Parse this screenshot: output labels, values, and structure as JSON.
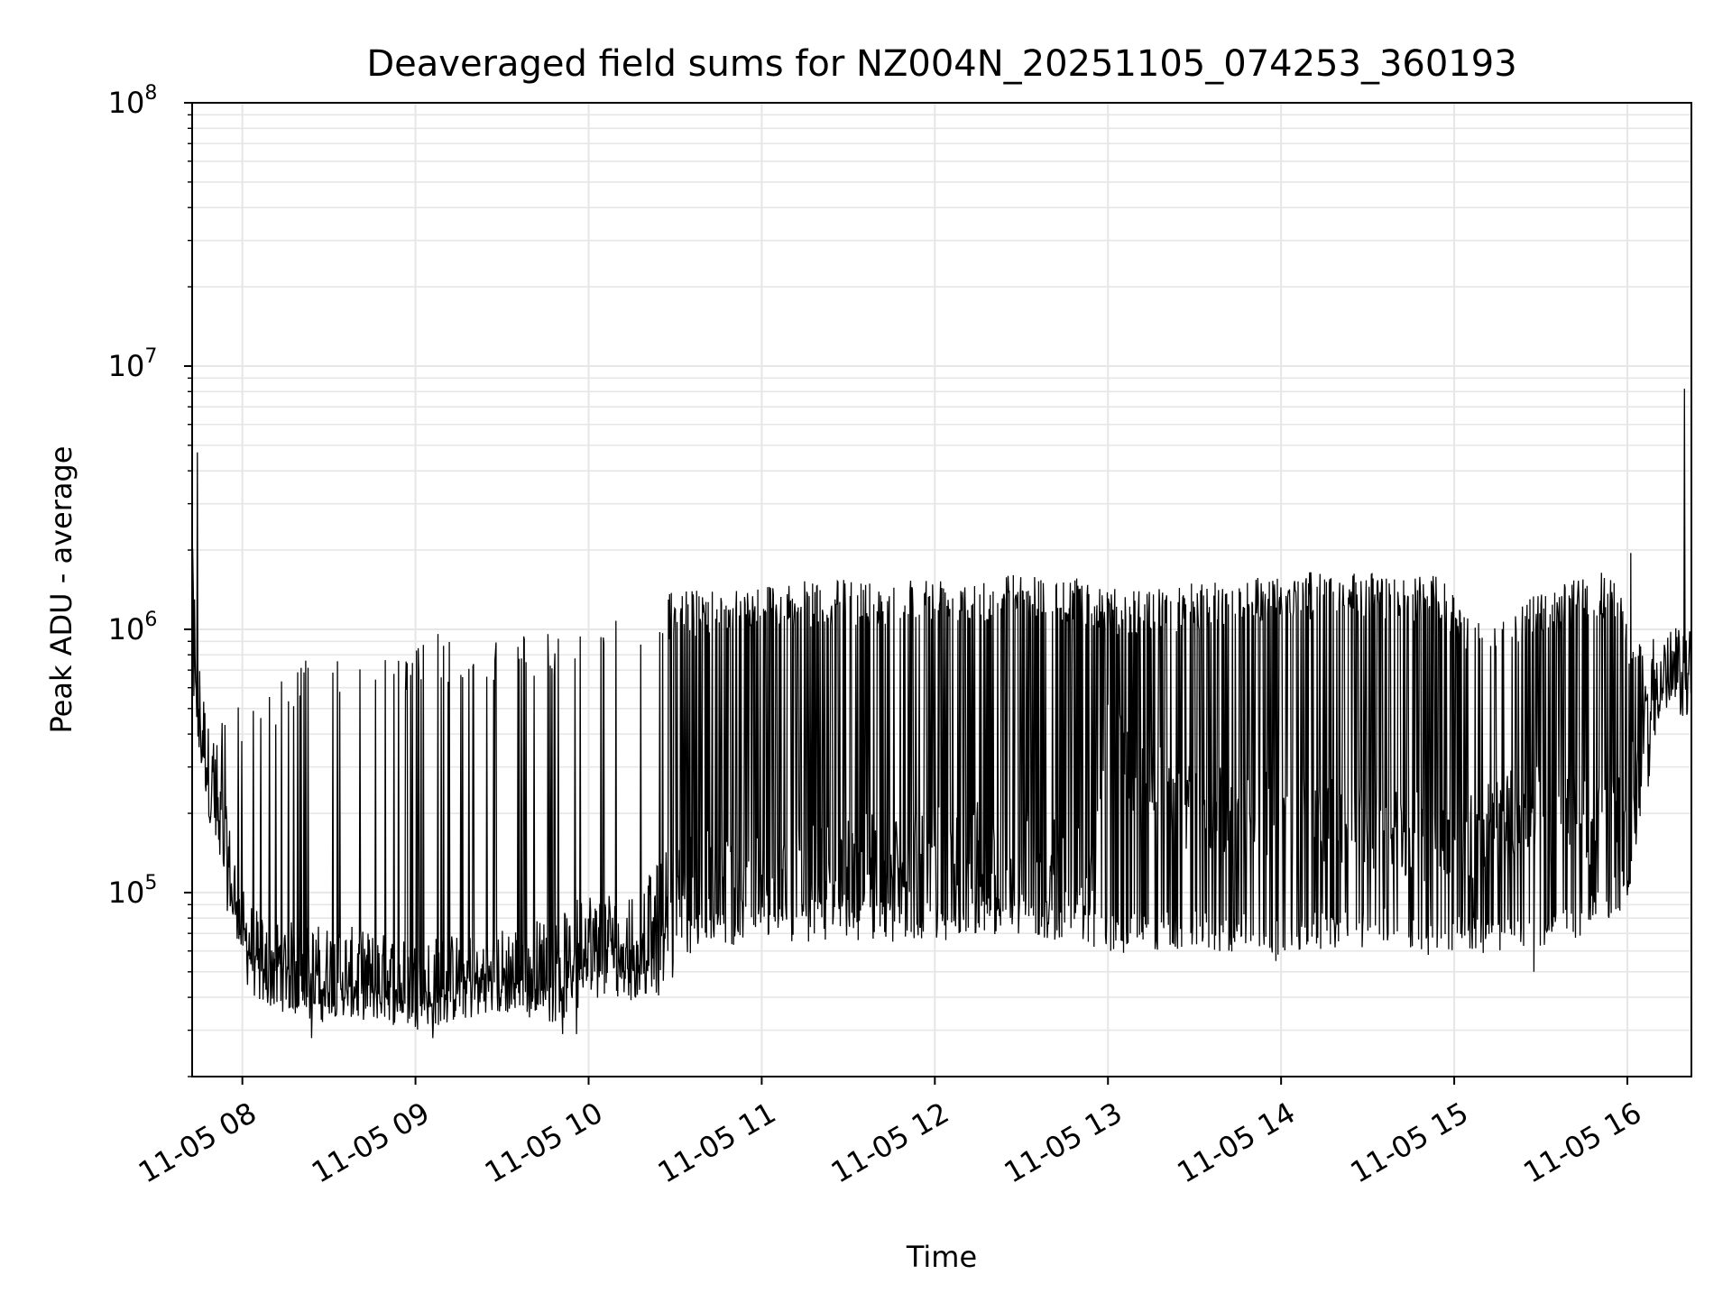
{
  "chart_data": {
    "type": "line",
    "title": "Deaveraged field sums for NZ004N_20251105_074253_360193",
    "xlabel": "Time",
    "ylabel": "Peak ADU - average",
    "yscale": "log",
    "ylim": [
      20000,
      100000000
    ],
    "xlim_hours": [
      7.71,
      16.37
    ],
    "x_ticks": [
      {
        "hour": 8,
        "label": "11-05 08"
      },
      {
        "hour": 9,
        "label": "11-05 09"
      },
      {
        "hour": 10,
        "label": "11-05 10"
      },
      {
        "hour": 11,
        "label": "11-05 11"
      },
      {
        "hour": 12,
        "label": "11-05 12"
      },
      {
        "hour": 13,
        "label": "11-05 13"
      },
      {
        "hour": 14,
        "label": "11-05 14"
      },
      {
        "hour": 15,
        "label": "11-05 15"
      },
      {
        "hour": 16,
        "label": "11-05 16"
      }
    ],
    "y_ticks": [
      {
        "value": 100000,
        "base": "10",
        "exp": "5"
      },
      {
        "value": 1000000,
        "base": "10",
        "exp": "6"
      },
      {
        "value": 10000000,
        "base": "10",
        "exp": "7"
      },
      {
        "value": 100000000,
        "base": "10",
        "exp": "8"
      }
    ],
    "grid": true,
    "line_color": "#000000",
    "grid_color": "#e6e6e6",
    "series": [
      {
        "name": "field sums",
        "baseline_points": [
          [
            7.71,
            1500000
          ],
          [
            7.74,
            600000
          ],
          [
            7.8,
            300000
          ],
          [
            7.9,
            150000
          ],
          [
            8.0,
            70000
          ],
          [
            8.1,
            55000
          ],
          [
            8.3,
            52000
          ],
          [
            8.6,
            50000
          ],
          [
            9.0,
            45000
          ],
          [
            9.5,
            50000
          ],
          [
            9.8,
            55000
          ],
          [
            10.0,
            70000
          ],
          [
            10.3,
            70000
          ],
          [
            10.5,
            110000
          ],
          [
            10.7,
            120000
          ],
          [
            11.0,
            110000
          ],
          [
            11.5,
            130000
          ],
          [
            12.0,
            150000
          ],
          [
            12.5,
            160000
          ],
          [
            12.9,
            110000
          ],
          [
            13.0,
            500000
          ],
          [
            13.1,
            300000
          ],
          [
            13.5,
            200000
          ],
          [
            14.0,
            200000
          ],
          [
            14.5,
            180000
          ],
          [
            15.0,
            150000
          ],
          [
            15.2,
            180000
          ],
          [
            15.5,
            220000
          ],
          [
            15.8,
            180000
          ],
          [
            16.0,
            250000
          ],
          [
            16.08,
            350000
          ],
          [
            16.15,
            650000
          ],
          [
            16.37,
            700000
          ]
        ],
        "peak_envelope": [
          [
            7.71,
            4000000
          ],
          [
            7.8,
            450000
          ],
          [
            8.1,
            600000
          ],
          [
            8.4,
            800000
          ],
          [
            8.8,
            800000
          ],
          [
            9.1,
            900000
          ],
          [
            9.5,
            950000
          ],
          [
            9.9,
            1000000
          ],
          [
            10.2,
            1100000
          ],
          [
            10.5,
            1400000
          ],
          [
            11.0,
            1500000
          ],
          [
            11.5,
            1550000
          ],
          [
            12.0,
            1600000
          ],
          [
            12.5,
            1650000
          ],
          [
            12.9,
            1550000
          ],
          [
            13.1,
            1400000
          ],
          [
            13.5,
            1500000
          ],
          [
            14.0,
            1650000
          ],
          [
            14.5,
            1650000
          ],
          [
            14.9,
            1600000
          ],
          [
            15.2,
            1000000
          ],
          [
            15.5,
            1400000
          ],
          [
            15.9,
            1700000
          ],
          [
            16.1,
            800000
          ],
          [
            16.37,
            900000
          ]
        ],
        "trough_envelope": [
          [
            7.71,
            450000
          ],
          [
            7.8,
            200000
          ],
          [
            7.9,
            90000
          ],
          [
            8.1,
            38000
          ],
          [
            8.4,
            32000
          ],
          [
            8.8,
            33000
          ],
          [
            9.1,
            30000
          ],
          [
            9.4,
            35000
          ],
          [
            9.8,
            32000
          ],
          [
            10.1,
            38000
          ],
          [
            10.4,
            40000
          ],
          [
            10.6,
            60000
          ],
          [
            11.0,
            65000
          ],
          [
            11.5,
            65000
          ],
          [
            12.0,
            65000
          ],
          [
            12.5,
            70000
          ],
          [
            13.0,
            60000
          ],
          [
            13.5,
            60000
          ],
          [
            14.0,
            58000
          ],
          [
            14.5,
            62000
          ],
          [
            15.0,
            60000
          ],
          [
            15.5,
            55000
          ],
          [
            15.8,
            70000
          ],
          [
            16.0,
            90000
          ],
          [
            16.2,
            500000
          ],
          [
            16.37,
            550000
          ]
        ],
        "spikes": [
          [
            7.74,
            4700000
          ],
          [
            16.33,
            8200000
          ],
          [
            16.02,
            1950000
          ],
          [
            8.4,
            1000000
          ],
          [
            9.13,
            960000
          ]
        ],
        "dips": [
          [
            8.4,
            28000
          ],
          [
            9.1,
            28000
          ],
          [
            9.85,
            29000
          ],
          [
            9.93,
            29000
          ],
          [
            13.09,
            59000
          ],
          [
            13.97,
            55000
          ],
          [
            14.85,
            58000
          ],
          [
            15.46,
            50000
          ]
        ]
      }
    ]
  }
}
